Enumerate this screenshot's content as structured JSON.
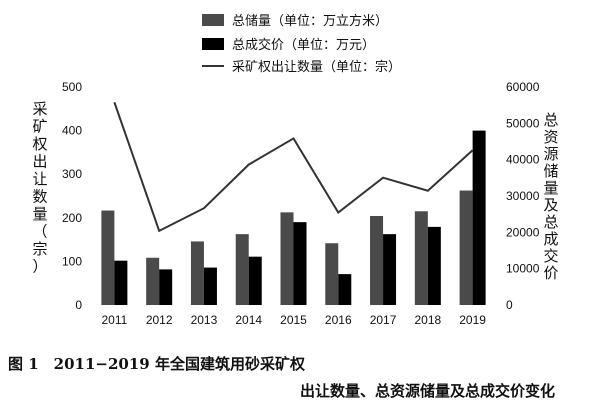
{
  "chart_data": {
    "type": "bar",
    "categories": [
      "2011",
      "2012",
      "2013",
      "2014",
      "2015",
      "2016",
      "2017",
      "2018",
      "2019"
    ],
    "series": [
      {
        "name": "总储量（单位：万立方米）",
        "kind": "bar",
        "axis": "right",
        "color": "#4a4a4a",
        "values": [
          26000,
          13000,
          17500,
          19500,
          25500,
          17000,
          24500,
          25800,
          31500
        ]
      },
      {
        "name": "总成交价（单位：万元）",
        "kind": "bar",
        "axis": "right",
        "color": "#000000",
        "values": [
          12200,
          9800,
          10300,
          13300,
          22800,
          8500,
          19500,
          21500,
          48000
        ]
      },
      {
        "name": "采矿权出让数量（单位：宗）",
        "kind": "line",
        "axis": "left",
        "color": "#333333",
        "values": [
          465,
          170,
          222,
          322,
          382,
          212,
          292,
          262,
          355
        ]
      }
    ],
    "y_left": {
      "label": "采矿权出让数量（宗）",
      "ylim": [
        0,
        500
      ],
      "ticks": [
        "0",
        "100",
        "200",
        "300",
        "400",
        "500"
      ]
    },
    "y_right": {
      "label": "总资源储量及总成交价",
      "ylim": [
        0,
        60000
      ],
      "ticks": [
        "0",
        "10000",
        "20000",
        "30000",
        "40000",
        "50000",
        "60000"
      ]
    },
    "legend_position": "top-center",
    "grid": false
  },
  "caption": {
    "line1": "图 1　2011−2019 年全国建筑用砂采矿权",
    "line2": "出让数量、总资源储量及总成交价变化"
  }
}
